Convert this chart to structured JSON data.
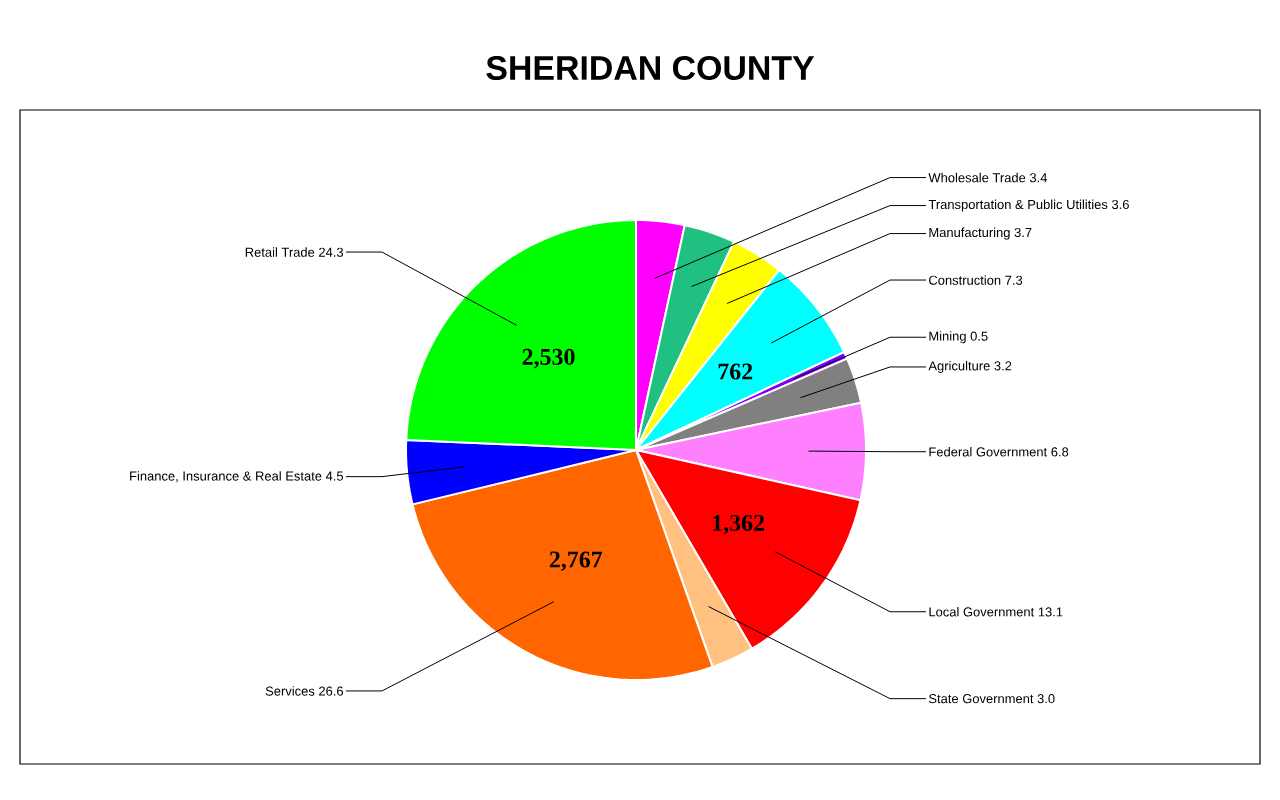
{
  "chart_data": {
    "type": "pie",
    "title": "SHERIDAN COUNTY",
    "categories": [
      "Wholesale Trade",
      "Transportation & Public Utilities",
      "Manufacturing",
      "Construction",
      "Mining",
      "Agriculture",
      "Federal Government",
      "Local Government",
      "State Government",
      "Services",
      "Finance, Insurance & Real Estate",
      "Retail Trade"
    ],
    "values": [
      3.4,
      3.6,
      3.7,
      7.3,
      0.5,
      3.2,
      6.8,
      13.1,
      3.0,
      26.6,
      4.5,
      24.3
    ],
    "colors": [
      "#ff00ff",
      "#20c080",
      "#ffff00",
      "#00ffff",
      "#8000ff",
      "#808080",
      "#ff80ff",
      "#ff0000",
      "#ffc080",
      "#ff6600",
      "#0000ff",
      "#00ff00"
    ],
    "value_labels": [
      "3.4",
      "3.6",
      "3.7",
      "7.3",
      "0.5",
      "3.2",
      "6.8",
      "13.1",
      "3.0",
      "26.6",
      "4.5",
      "24.3"
    ],
    "annotations": [
      {
        "text": "2,530",
        "x": "Retail Trade"
      },
      {
        "text": "762",
        "x": "Construction"
      },
      {
        "text": "1,362",
        "x": "Local Government"
      },
      {
        "text": "2,767",
        "x": "Services"
      }
    ]
  }
}
